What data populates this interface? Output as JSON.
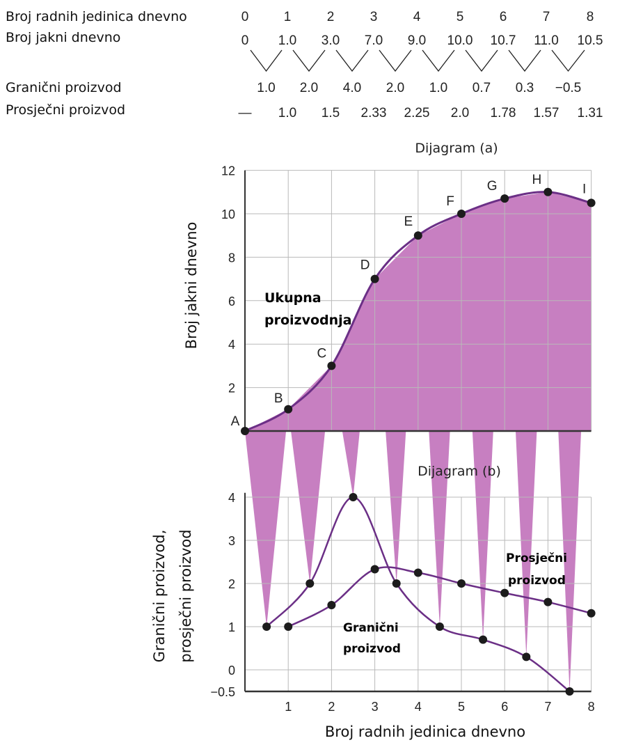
{
  "table": {
    "row_labels": {
      "workers": "Broj radnih jedinica dnevno",
      "output": "Broj jakni dnevno",
      "marginal": "Granični proizvod",
      "average": "Prosječni proizvod"
    },
    "workers": [
      "0",
      "1",
      "2",
      "3",
      "4",
      "5",
      "6",
      "7",
      "8"
    ],
    "output": [
      "0",
      "1.0",
      "3.0",
      "7.0",
      "9.0",
      "10.0",
      "10.7",
      "11.0",
      "10.5"
    ],
    "marginal": [
      "1.0",
      "2.0",
      "4.0",
      "2.0",
      "1.0",
      "0.7",
      "0.3",
      "−0.5"
    ],
    "average": [
      "—",
      "1.0",
      "1.5",
      "2.33",
      "2.25",
      "2.0",
      "1.78",
      "1.57",
      "1.31"
    ]
  },
  "chart_data": [
    {
      "type": "line",
      "title": "Dijagram (a)",
      "xlabel": "",
      "ylabel": "Broj jakni dnevno",
      "x": [
        0,
        1,
        2,
        3,
        4,
        5,
        6,
        7,
        8
      ],
      "xlim": [
        0,
        8
      ],
      "ylim": [
        0,
        12
      ],
      "yticks": [
        "2",
        "4",
        "6",
        "8",
        "10",
        "12"
      ],
      "grid": true,
      "series": [
        {
          "name": "Ukupna proizvodnja",
          "values": [
            0,
            1.0,
            3.0,
            7.0,
            9.0,
            10.0,
            10.7,
            11.0,
            10.5
          ],
          "point_labels": [
            "A",
            "B",
            "C",
            "D",
            "E",
            "F",
            "G",
            "H",
            "I"
          ]
        }
      ],
      "annotation": "Ukupna proizvodnja"
    },
    {
      "type": "line",
      "title": "Dijagram (b)",
      "xlabel": "Broj radnih jedinica dnevno",
      "ylabel": "Granični proizvod, prosječni proizvod",
      "ylabel_lines": [
        "Granični proizvod,",
        "prosječni proizvod"
      ],
      "xlim": [
        0,
        8
      ],
      "ylim": [
        -0.5,
        4
      ],
      "xticks": [
        "1",
        "2",
        "3",
        "4",
        "5",
        "6",
        "7",
        "8"
      ],
      "yticks": [
        "−0.5",
        "0",
        "1",
        "2",
        "3",
        "4"
      ],
      "grid": true,
      "series": [
        {
          "name": "Granični proizvod",
          "x": [
            0.5,
            1.5,
            2.5,
            3.5,
            4.5,
            5.5,
            6.5,
            7.5
          ],
          "values": [
            1.0,
            2.0,
            4.0,
            2.0,
            1.0,
            0.7,
            0.3,
            -0.5
          ]
        },
        {
          "name": "Prosječni proizvod",
          "x": [
            1,
            2,
            3,
            4,
            5,
            6,
            7,
            8
          ],
          "values": [
            1.0,
            1.5,
            2.33,
            2.25,
            2.0,
            1.78,
            1.57,
            1.31
          ]
        }
      ],
      "annotations": {
        "marginal": [
          "Granični",
          "proizvod"
        ],
        "average": [
          "Prosječni",
          "proizvod"
        ]
      }
    }
  ],
  "colors": {
    "fill": "#c77fc1",
    "line": "#6b2f86",
    "grid": "#b9b9b9",
    "axis": "#333333",
    "point": "#1c1c1c"
  }
}
